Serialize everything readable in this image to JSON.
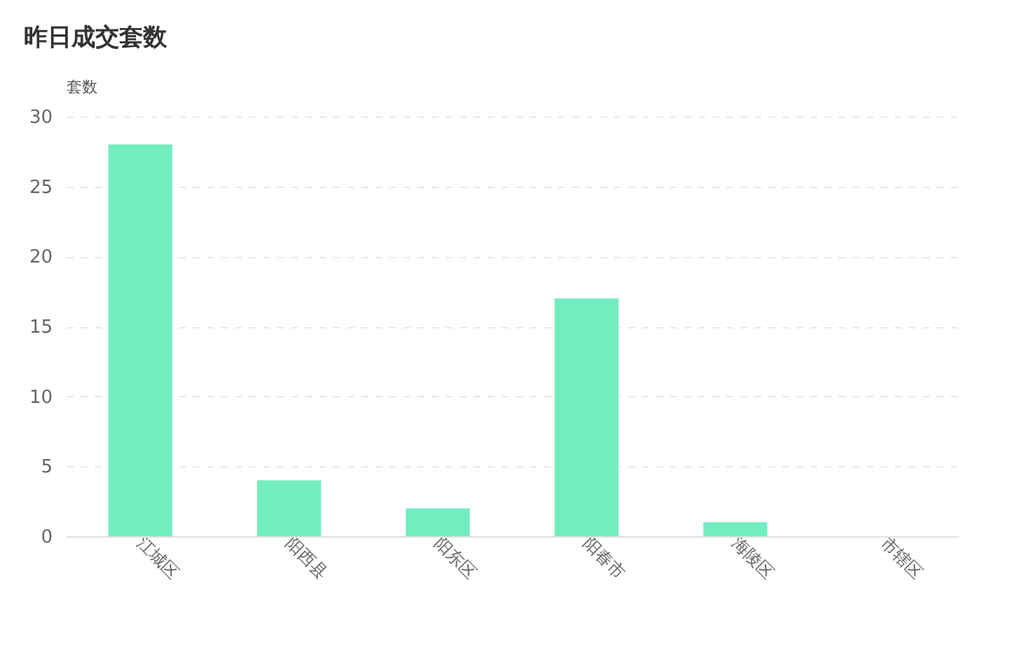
{
  "chart_data": {
    "type": "bar",
    "title": "昨日成交套数",
    "ylabel": "套数",
    "categories": [
      "江城区",
      "阳西县",
      "阳东区",
      "阳春市",
      "海陵区",
      "市辖区"
    ],
    "values": [
      28,
      4,
      2,
      17,
      1,
      0
    ],
    "color": "#72edc0",
    "ylim": [
      0,
      30
    ],
    "yticks": [
      0,
      5,
      10,
      15,
      20,
      25,
      30
    ],
    "grid": "y"
  }
}
